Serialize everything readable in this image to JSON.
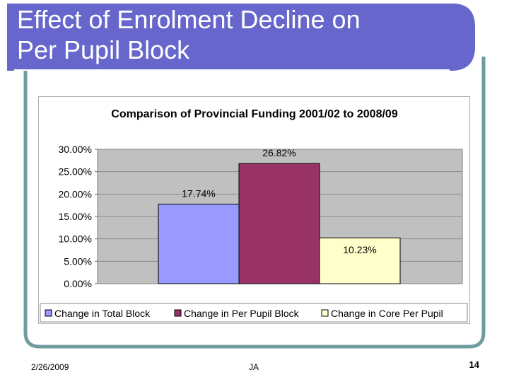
{
  "slide": {
    "title_line1": "Effect of Enrolment Decline on",
    "title_line2": "Per Pupil Block",
    "footer_date": "2/26/2009",
    "footer_author": "JA",
    "page_number": "14"
  },
  "colors": {
    "title_bar": "#6666cc",
    "frame": "#6f9ba1",
    "plot_bg": "#c0c0c0"
  },
  "chart_data": {
    "type": "bar",
    "title": "Comparison of Provincial Funding 2001/02 to 2008/09",
    "ylim": [
      0,
      30
    ],
    "yticks": [
      0,
      5,
      10,
      15,
      20,
      25,
      30
    ],
    "ytick_labels": [
      "0.00%",
      "5.00%",
      "10.00%",
      "15.00%",
      "20.00%",
      "25.00%",
      "30.00%"
    ],
    "grid": true,
    "legend_position": "bottom",
    "series": [
      {
        "name": "Change in Total Block",
        "value": 17.74,
        "label": "17.74%",
        "color": "#9999ff"
      },
      {
        "name": "Change in Per Pupil Block",
        "value": 26.82,
        "label": "26.82%",
        "color": "#993366"
      },
      {
        "name": "Change in Core Per Pupil",
        "value": 10.23,
        "label": "10.23%",
        "color": "#ffffcc"
      }
    ]
  }
}
